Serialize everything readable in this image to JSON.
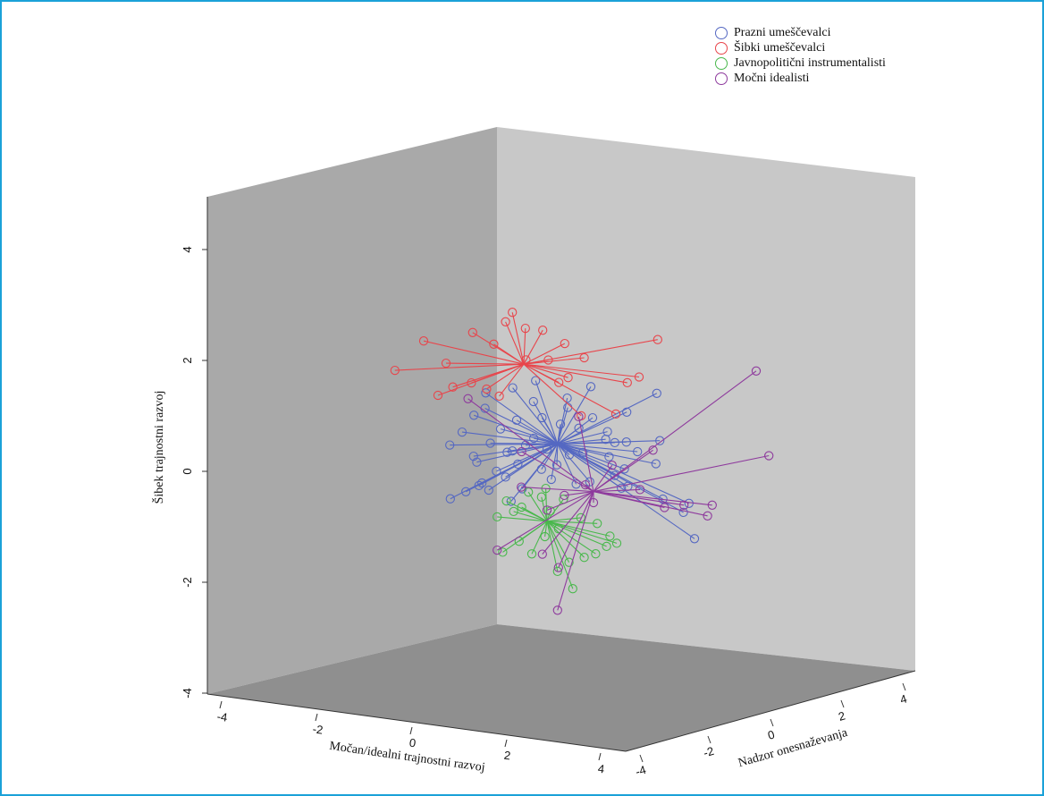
{
  "chart_data": {
    "type": "scatter",
    "subtype": "3d-scatter-with-centroid-spikes",
    "title": "",
    "xlabel": "Močan/idealni trajnostni razvoj",
    "ylabel": "Nadzor onesnaževanja",
    "zlabel": "Šibek trajnostni razvoj",
    "xlim": [
      -4.5,
      4.5
    ],
    "ylim": [
      -4.5,
      4.5
    ],
    "zlim": [
      -4,
      4.8
    ],
    "xticks": [
      "-4",
      "-2",
      "0",
      "2",
      "4"
    ],
    "yticks": [
      "4",
      "2",
      "0",
      "-2",
      "-4"
    ],
    "zticks": [
      "-4",
      "-2",
      "0",
      "2",
      "4"
    ],
    "grid": false,
    "legend_position": "top-right",
    "series": [
      {
        "name": "Prazni umeščevalci",
        "color": "#5568c2",
        "centroid": [
          0.2,
          0.1,
          0.5
        ],
        "points": [
          [
            -1.6,
            0.1,
            0.9
          ],
          [
            -1.8,
            -0.1,
            0.6
          ],
          [
            -1.3,
            0.3,
            0.4
          ],
          [
            -1.0,
            0.0,
            0.7
          ],
          [
            -0.8,
            0.2,
            0.3
          ],
          [
            -1.5,
            -0.3,
            0.2
          ],
          [
            -0.6,
            -0.2,
            0.9
          ],
          [
            -0.4,
            0.4,
            1.2
          ],
          [
            0.0,
            -0.4,
            1.0
          ],
          [
            0.3,
            0.5,
            1.3
          ],
          [
            -1.2,
            -0.5,
            1.1
          ],
          [
            -0.9,
            0.6,
            1.4
          ],
          [
            -0.3,
            0.2,
            1.6
          ],
          [
            0.5,
            -0.2,
            1.2
          ],
          [
            0.9,
            0.3,
            1.0
          ],
          [
            1.3,
            0.0,
            0.8
          ],
          [
            1.6,
            0.4,
            0.6
          ],
          [
            2.0,
            -0.2,
            0.5
          ],
          [
            2.4,
            0.1,
            0.7
          ],
          [
            2.2,
            0.6,
            1.5
          ],
          [
            1.8,
            -0.5,
            0.2
          ],
          [
            1.4,
            0.2,
            0.0
          ],
          [
            1.0,
            -0.3,
            -0.1
          ],
          [
            0.6,
            0.1,
            -0.2
          ],
          [
            0.2,
            -0.4,
            -0.1
          ],
          [
            -0.2,
            0.3,
            0.0
          ],
          [
            -0.6,
            -0.1,
            0.1
          ],
          [
            -1.0,
            0.4,
            -0.2
          ],
          [
            -1.4,
            0.0,
            -0.3
          ],
          [
            -1.8,
            0.2,
            -0.5
          ],
          [
            -2.0,
            -0.3,
            -0.6
          ],
          [
            -1.6,
            0.5,
            -0.4
          ],
          [
            -1.2,
            -0.2,
            -0.4
          ],
          [
            -0.8,
            0.1,
            -0.6
          ],
          [
            -0.4,
            -0.5,
            -0.3
          ],
          [
            0.4,
            0.3,
            0.3
          ],
          [
            0.8,
            -0.1,
            0.4
          ],
          [
            1.2,
            0.5,
            0.3
          ],
          [
            1.6,
            0.0,
            -0.2
          ],
          [
            2.6,
            -0.4,
            -0.3
          ],
          [
            3.0,
            0.2,
            -0.4
          ],
          [
            3.2,
            -0.1,
            -1.0
          ],
          [
            2.8,
            0.5,
            -0.6
          ],
          [
            1.9,
            -0.6,
            -0.1
          ],
          [
            1.1,
            0.6,
            0.6
          ],
          [
            0.1,
            0.7,
            0.8
          ],
          [
            -0.5,
            0.8,
            0.5
          ],
          [
            -1.1,
            0.9,
            0.2
          ],
          [
            -1.7,
            0.7,
            0.0
          ],
          [
            0.7,
            0.9,
            1.5
          ],
          [
            0.0,
            0.0,
            0.4
          ],
          [
            -0.3,
            -0.6,
            0.5
          ],
          [
            0.4,
            -0.7,
            0.2
          ],
          [
            1.5,
            0.8,
            1.1
          ],
          [
            2.1,
            0.9,
            0.2
          ],
          [
            -0.9,
            -0.7,
            0.0
          ],
          [
            -2.2,
            0.4,
            0.3
          ],
          [
            0.9,
            -0.8,
            0.9
          ],
          [
            1.7,
            -0.9,
            0.7
          ],
          [
            -1.4,
            0.3,
            1.3
          ]
        ]
      },
      {
        "name": "Šibki umeščevalci",
        "color": "#e8454b",
        "centroid": [
          -0.5,
          0.0,
          1.9
        ],
        "points": [
          [
            -3.3,
            0.1,
            1.6
          ],
          [
            -2.6,
            -0.2,
            2.2
          ],
          [
            -2.2,
            0.1,
            1.8
          ],
          [
            -2.0,
            -0.1,
            1.4
          ],
          [
            -2.4,
            0.2,
            1.2
          ],
          [
            -1.6,
            0.0,
            2.4
          ],
          [
            -1.2,
            0.2,
            2.2
          ],
          [
            -1.0,
            0.4,
            2.6
          ],
          [
            -0.8,
            0.2,
            2.8
          ],
          [
            -0.6,
            0.5,
            2.5
          ],
          [
            -0.2,
            0.4,
            2.5
          ],
          [
            0.3,
            0.3,
            2.3
          ],
          [
            0.8,
            0.0,
            2.1
          ],
          [
            2.3,
            0.3,
            2.5
          ],
          [
            1.9,
            0.3,
            1.8
          ],
          [
            1.7,
            0.1,
            1.7
          ],
          [
            1.4,
            0.3,
            1.1
          ],
          [
            0.6,
            0.5,
            1.0
          ],
          [
            0.2,
            0.2,
            1.6
          ],
          [
            -1.6,
            -0.1,
            1.5
          ],
          [
            -1.3,
            0.0,
            1.4
          ],
          [
            -1.0,
            -0.1,
            1.3
          ],
          [
            -0.4,
            -0.2,
            2.0
          ],
          [
            0.0,
            0.1,
            2.0
          ],
          [
            0.4,
            0.2,
            1.7
          ]
        ]
      },
      {
        "name": "Javnopolitični instrumentalisti",
        "color": "#49b84c",
        "centroid": [
          0.0,
          0.0,
          -0.9
        ],
        "points": [
          [
            -0.9,
            0.1,
            -0.6
          ],
          [
            -0.6,
            0.2,
            -0.7
          ],
          [
            -0.4,
            0.0,
            -0.4
          ],
          [
            -0.2,
            0.3,
            -0.5
          ],
          [
            0.0,
            -0.1,
            -0.3
          ],
          [
            0.3,
            0.2,
            -0.5
          ],
          [
            0.7,
            0.1,
            -0.8
          ],
          [
            1.0,
            0.3,
            -0.9
          ],
          [
            1.3,
            0.2,
            -1.1
          ],
          [
            1.5,
            0.0,
            -1.2
          ],
          [
            1.1,
            -0.2,
            -1.4
          ],
          [
            0.8,
            0.0,
            -1.5
          ],
          [
            0.5,
            -0.1,
            -1.6
          ],
          [
            0.2,
            0.1,
            -1.8
          ],
          [
            0.5,
            0.2,
            -2.1
          ],
          [
            -0.3,
            -0.1,
            -1.5
          ],
          [
            -0.6,
            0.0,
            -1.3
          ],
          [
            -0.9,
            -0.2,
            -1.5
          ],
          [
            -1.1,
            0.1,
            -0.9
          ],
          [
            -0.8,
            0.3,
            -0.8
          ],
          [
            -0.1,
            0.2,
            -1.2
          ],
          [
            0.3,
            -0.2,
            -1.0
          ],
          [
            1.2,
            0.3,
            -1.3
          ],
          [
            0.1,
            -0.1,
            -0.7
          ]
        ]
      },
      {
        "name": "Močni idealisti",
        "color": "#8e3a9d",
        "centroid": [
          1.0,
          0.0,
          -0.3
        ],
        "points": [
          [
            4.5,
            0.0,
            2.1
          ],
          [
            4.8,
            -0.1,
            0.6
          ],
          [
            3.4,
            0.2,
            -0.6
          ],
          [
            3.0,
            -0.2,
            -0.4
          ],
          [
            2.5,
            0.1,
            -0.5
          ],
          [
            2.0,
            0.0,
            -0.2
          ],
          [
            2.2,
            0.3,
            0.5
          ],
          [
            1.0,
            0.0,
            -0.5
          ],
          [
            0.8,
            0.1,
            -0.2
          ],
          [
            0.4,
            -0.1,
            -0.4
          ],
          [
            0.0,
            0.0,
            -0.7
          ],
          [
            -0.5,
            -0.2,
            -0.3
          ],
          [
            -1.1,
            0.1,
            -1.5
          ],
          [
            -0.1,
            0.0,
            -1.5
          ],
          [
            0.3,
            -0.2,
            -1.7
          ],
          [
            0.2,
            0.1,
            -2.5
          ],
          [
            -0.6,
            0.2,
            0.3
          ],
          [
            0.6,
            0.3,
            1.0
          ],
          [
            1.4,
            0.0,
            0.2
          ],
          [
            -1.7,
            0.0,
            1.2
          ],
          [
            3.5,
            0.2,
            -0.4
          ]
        ]
      }
    ]
  }
}
